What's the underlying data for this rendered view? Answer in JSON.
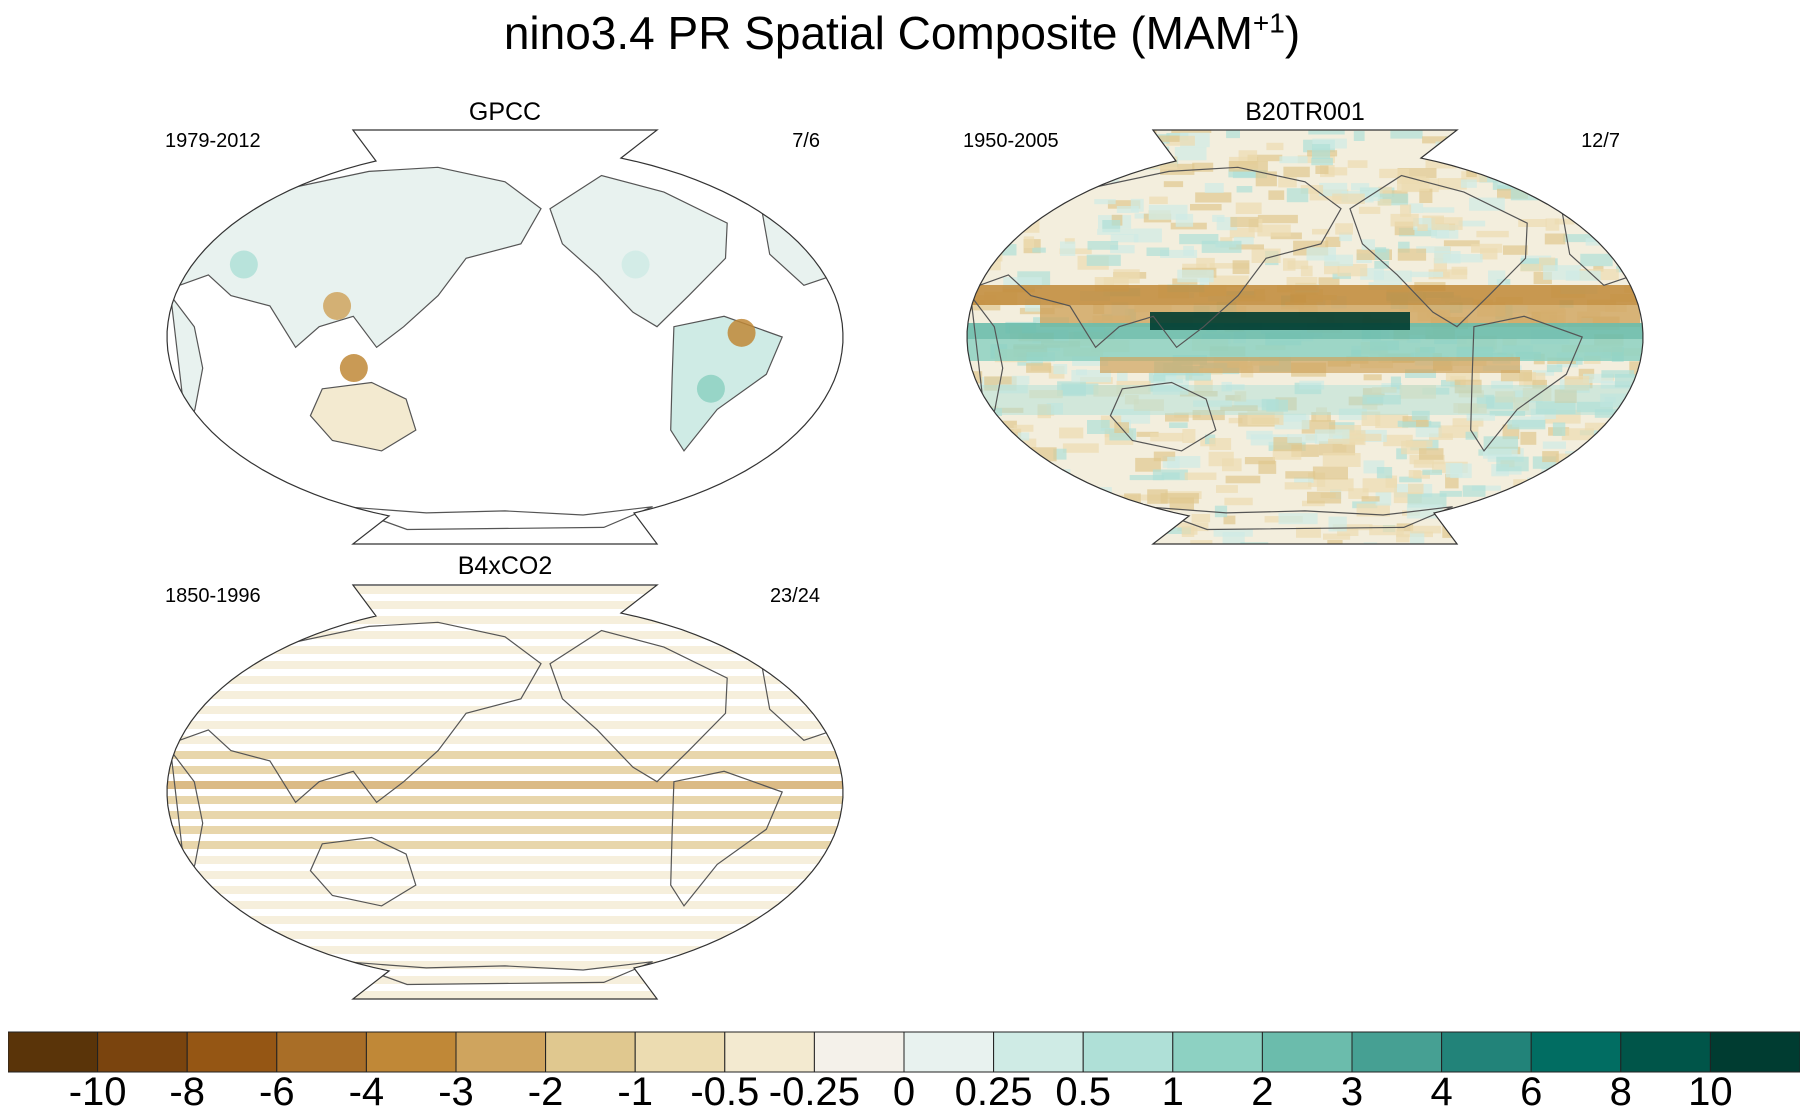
{
  "title": {
    "main": "nino3.4 PR Spatial Composite (MAM",
    "superscript": "+1",
    "close": ")"
  },
  "panels": [
    {
      "name": "GPCC",
      "period": "1979-2012",
      "counts": "7/6",
      "pattern": "land-only"
    },
    {
      "name": "B20TR001",
      "period": "1950-2005",
      "counts": "12/7",
      "pattern": "model"
    },
    {
      "name": "B4xCO2",
      "period": "1850-1996",
      "counts": "23/24",
      "pattern": "striped"
    }
  ],
  "colorbar": {
    "colors": [
      "#5a3409",
      "#7a440e",
      "#955614",
      "#a96e27",
      "#c08837",
      "#cfa45e",
      "#e0c88f",
      "#ecdcb1",
      "#f3ead0",
      "#f4f1ea",
      "#e8f2ef",
      "#cfebe5",
      "#afe0d7",
      "#8dd1c2",
      "#6bbcac",
      "#46a093",
      "#228379",
      "#016d62",
      "#005549",
      "#003c31"
    ],
    "labels": [
      "-10",
      "-8",
      "-6",
      "-4",
      "-3",
      "-2",
      "-1",
      "-0.5",
      "-0.25",
      "0",
      "0.25",
      "0.5",
      "1",
      "2",
      "3",
      "4",
      "6",
      "8",
      "10"
    ]
  }
}
